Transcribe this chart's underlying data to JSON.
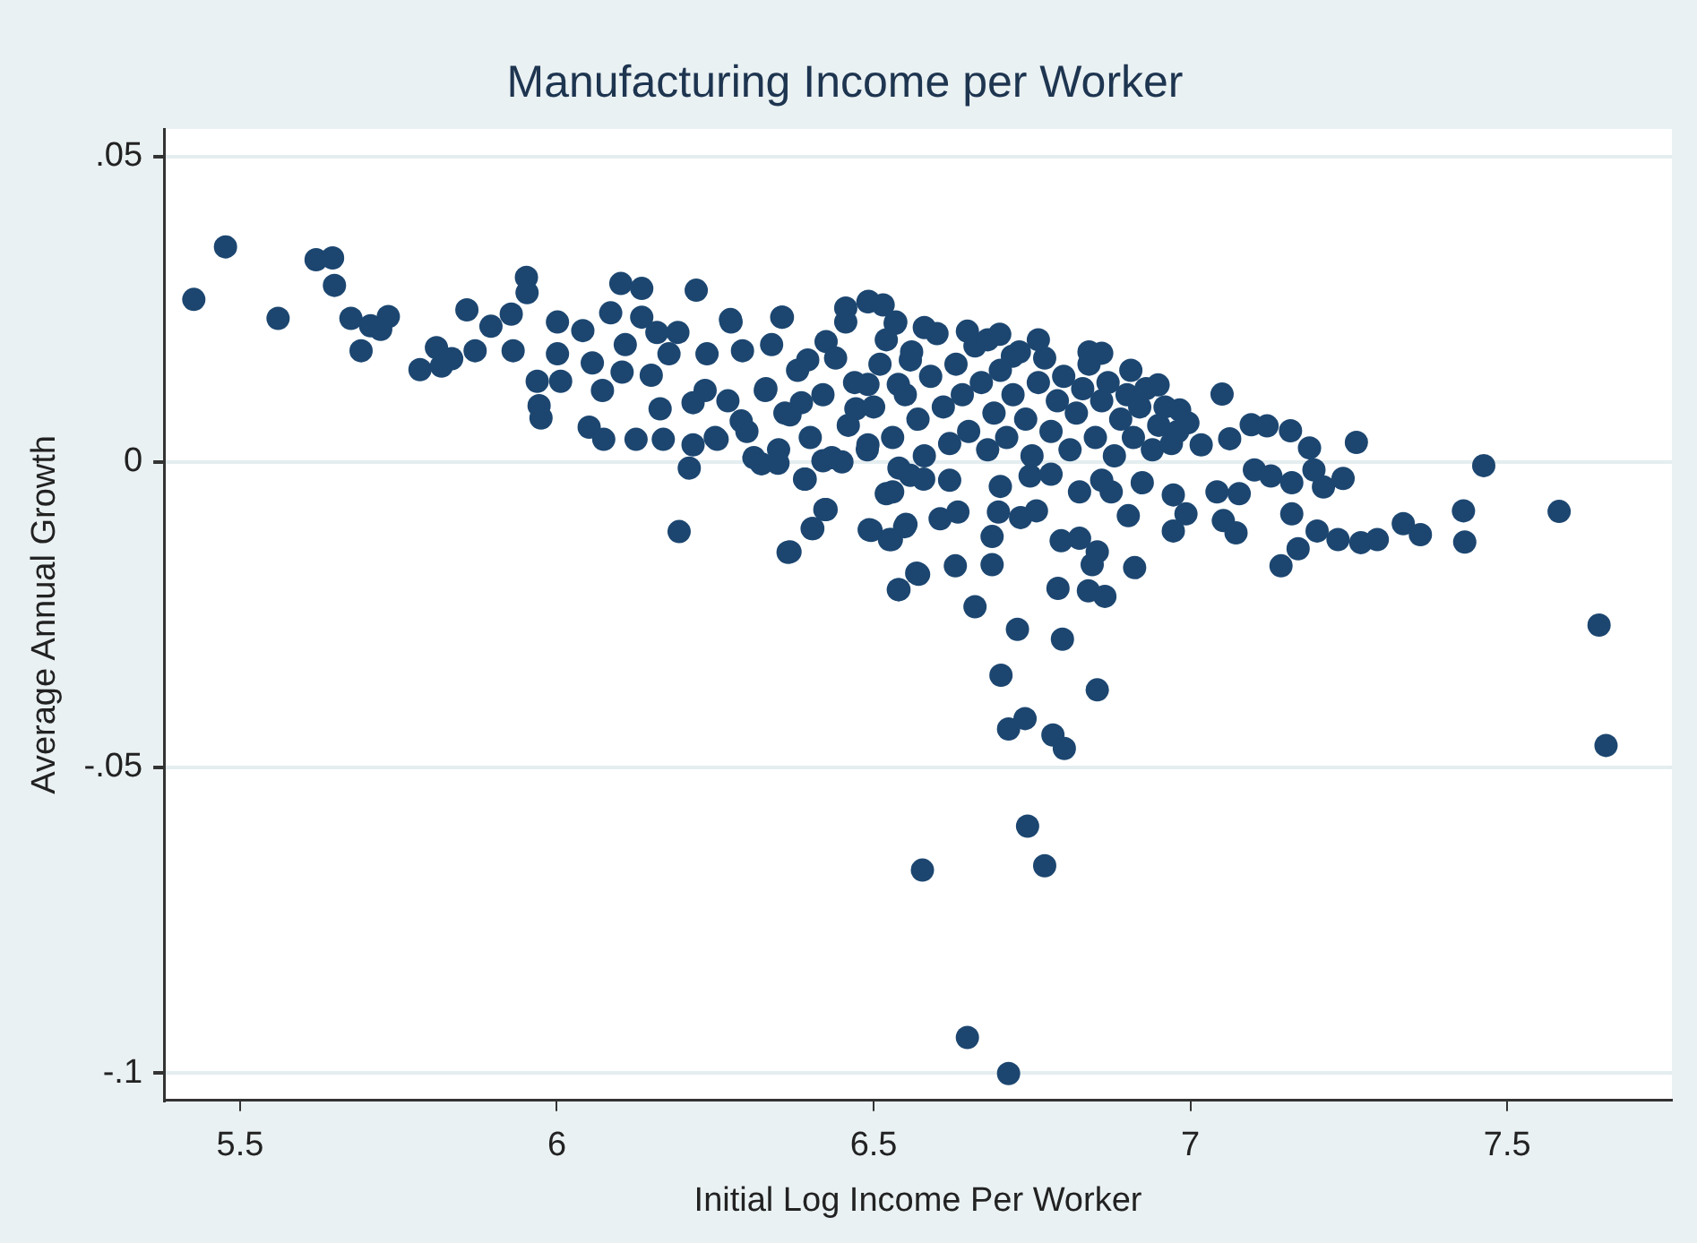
{
  "chart_data": {
    "type": "scatter",
    "title": "Manufacturing Income per Worker",
    "xlabel": "Initial Log Income Per Worker",
    "ylabel": "Average Annual Growth",
    "xlim": [
      5.38,
      7.76
    ],
    "ylim": [
      -0.1045,
      0.0545
    ],
    "xticks": [
      5.5,
      6,
      6.5,
      7,
      7.5
    ],
    "yticks": [
      {
        "value": -0.1,
        "label": "-.1"
      },
      {
        "value": -0.05,
        "label": "-.05"
      },
      {
        "value": 0,
        "label": "0"
      },
      {
        "value": 0.05,
        "label": ".05"
      }
    ],
    "grid": "y",
    "legend": false,
    "marker": "circle",
    "series": [
      {
        "color": "#1c4670",
        "x": [
          5.427,
          5.477,
          5.56,
          5.62,
          5.646,
          5.649,
          5.675,
          5.691,
          5.706,
          5.734,
          5.722,
          6.193,
          6.368,
          6.403,
          6.425,
          6.209,
          5.784,
          5.81,
          5.834,
          5.818,
          5.858,
          5.871,
          5.896,
          5.928,
          5.931,
          5.952,
          5.953,
          5.969,
          5.975,
          5.972,
          6.001,
          6.001,
          6.006,
          6.041,
          6.056,
          6.085,
          6.051,
          6.074,
          6.072,
          6.101,
          6.134,
          6.108,
          6.103,
          6.134,
          6.158,
          6.191,
          6.177,
          6.149,
          6.125,
          6.168,
          6.163,
          6.22,
          6.275,
          6.237,
          6.293,
          6.356,
          6.339,
          6.234,
          6.215,
          6.215,
          6.253,
          6.291,
          6.329,
          6.311,
          6.349,
          6.391,
          6.42,
          6.434,
          6.396,
          6.425,
          6.456,
          6.491,
          6.534,
          6.491,
          6.491,
          6.496,
          6.525,
          6.551,
          6.539,
          6.568,
          6.52,
          6.558,
          6.386,
          6.368,
          6.472,
          6.539,
          6.558,
          6.274,
          6.355,
          6.492,
          6.515,
          6.535,
          6.456,
          6.648,
          6.699,
          6.719,
          6.86,
          6.906,
          6.949,
          6.983,
          6.996,
          7.017,
          7.05,
          7.062,
          7.096,
          7.121,
          7.158,
          7.188,
          7.262,
          7.101,
          7.127,
          7.16,
          7.195,
          7.21,
          7.241,
          7.077,
          7.042,
          6.973,
          6.993,
          6.973,
          7.052,
          7.072,
          7.16,
          7.143,
          7.17,
          7.2,
          7.233,
          7.269,
          7.295,
          7.336,
          7.363,
          7.431,
          7.433,
          7.463,
          7.582,
          7.645,
          7.656,
          6.902,
          6.912,
          6.853,
          6.825,
          6.796,
          6.845,
          6.839,
          6.865,
          6.791,
          6.798,
          6.727,
          6.853,
          6.701,
          6.713,
          6.739,
          6.783,
          6.801,
          6.743,
          6.77,
          6.577,
          6.648,
          6.713,
          6.66,
          6.687,
          6.687,
          6.629,
          6.571,
          6.54,
          6.549,
          6.528,
          6.493,
          6.423,
          6.404,
          6.365,
          6.605,
          6.633,
          6.697,
          6.732,
          6.757,
          6.747,
          6.579,
          6.53,
          6.392,
          6.323,
          6.825,
          6.875,
          6.924,
          6.3,
          6.33,
          6.36,
          6.38,
          6.4,
          6.42,
          6.44,
          6.46,
          6.47,
          6.49,
          6.5,
          6.51,
          6.52,
          6.53,
          6.55,
          6.56,
          6.57,
          6.58,
          6.59,
          6.6,
          6.61,
          6.62,
          6.63,
          6.64,
          6.65,
          6.66,
          6.67,
          6.68,
          6.69,
          6.7,
          6.71,
          6.72,
          6.73,
          6.74,
          6.75,
          6.76,
          6.77,
          6.78,
          6.79,
          6.8,
          6.81,
          6.82,
          6.83,
          6.84,
          6.85,
          6.86,
          6.87,
          6.88,
          6.89,
          6.9,
          6.91,
          6.92,
          6.93,
          6.94,
          6.95,
          6.96,
          6.97,
          6.98,
          6.62,
          6.7,
          6.78,
          6.86,
          6.54,
          6.45,
          6.27,
          6.25,
          6.35,
          6.58,
          6.68,
          6.76,
          6.84
        ],
        "values": [
          0.0266,
          0.0352,
          0.0235,
          0.0331,
          0.0334,
          0.0289,
          0.0235,
          0.0182,
          0.0223,
          0.0238,
          0.0217,
          -0.0114,
          -0.0147,
          -0.0109,
          -0.0078,
          -0.001,
          0.0151,
          0.0187,
          0.0169,
          0.0157,
          0.0249,
          0.0182,
          0.0222,
          0.0242,
          0.0182,
          0.0302,
          0.0277,
          0.0132,
          0.0072,
          0.0092,
          0.0229,
          0.0177,
          0.0132,
          0.0215,
          0.0162,
          0.0244,
          0.0057,
          0.0037,
          0.0117,
          0.0292,
          0.0284,
          0.0192,
          0.0147,
          0.0237,
          0.0212,
          0.0212,
          0.0177,
          0.0142,
          0.0037,
          0.0037,
          0.0087,
          0.0281,
          0.0229,
          0.0177,
          0.0182,
          0.0237,
          0.0192,
          0.0117,
          0.0097,
          0.0028,
          0.0037,
          0.0067,
          0.0117,
          0.0007,
          -0.0002,
          -0.0028,
          0.0002,
          0.0007,
          0.0167,
          0.0197,
          0.0252,
          0.0262,
          0.0227,
          0.0127,
          0.0028,
          -0.0112,
          -0.0127,
          -0.0102,
          -0.0209,
          -0.0182,
          -0.0052,
          -0.0022,
          0.0097,
          0.0077,
          0.0087,
          0.0127,
          0.0167,
          0.0233,
          0.0237,
          0.0263,
          0.0257,
          0.0229,
          0.0229,
          0.0214,
          0.0209,
          0.0173,
          0.0178,
          0.015,
          0.0126,
          0.0085,
          0.0064,
          0.0028,
          0.0111,
          0.0038,
          0.0061,
          0.0059,
          0.0051,
          0.0023,
          0.0032,
          -0.0013,
          -0.0023,
          -0.0034,
          -0.0013,
          -0.0041,
          -0.0027,
          -0.0052,
          -0.0049,
          -0.0054,
          -0.0085,
          -0.0113,
          -0.0096,
          -0.0116,
          -0.0085,
          -0.017,
          -0.0142,
          -0.0113,
          -0.0127,
          -0.0132,
          -0.0127,
          -0.0101,
          -0.0119,
          -0.008,
          -0.0131,
          -0.0006,
          -0.0081,
          -0.0267,
          -0.0464,
          -0.0088,
          -0.0173,
          -0.0147,
          -0.0125,
          -0.0129,
          -0.0168,
          -0.0211,
          -0.022,
          -0.0207,
          -0.029,
          -0.0274,
          -0.0373,
          -0.0349,
          -0.0437,
          -0.042,
          -0.0447,
          -0.0469,
          -0.0596,
          -0.0661,
          -0.0668,
          -0.0942,
          -0.1001,
          -0.0237,
          -0.0168,
          -0.0122,
          -0.017,
          -0.0184,
          -0.0209,
          -0.0106,
          -0.0127,
          -0.0111,
          -0.0078,
          -0.0109,
          -0.0148,
          -0.0093,
          -0.0082,
          -0.0082,
          -0.0091,
          -0.008,
          -0.0023,
          -0.0028,
          -0.0049,
          -0.0028,
          -0.0003,
          -0.0049,
          -0.0049,
          -0.0034,
          0.005,
          0.012,
          0.008,
          0.015,
          0.004,
          0.011,
          0.017,
          0.006,
          0.013,
          0.002,
          0.009,
          0.016,
          0.02,
          0.004,
          0.011,
          0.018,
          0.007,
          0.001,
          0.014,
          0.021,
          0.009,
          0.003,
          0.016,
          0.011,
          0.005,
          0.019,
          0.013,
          0.002,
          0.008,
          0.015,
          0.004,
          0.011,
          0.018,
          0.007,
          0.001,
          0.013,
          0.017,
          0.005,
          0.01,
          0.014,
          0.002,
          0.008,
          0.012,
          0.016,
          0.004,
          0.01,
          0.013,
          0.001,
          0.007,
          0.011,
          0.004,
          0.009,
          0.012,
          0.002,
          0.006,
          0.009,
          0.003,
          0.005,
          -0.003,
          -0.004,
          -0.002,
          -0.003,
          -0.001,
          0,
          0.01,
          0.004,
          0.002,
          0.022,
          0.02,
          0.02,
          0.018
        ]
      }
    ]
  }
}
